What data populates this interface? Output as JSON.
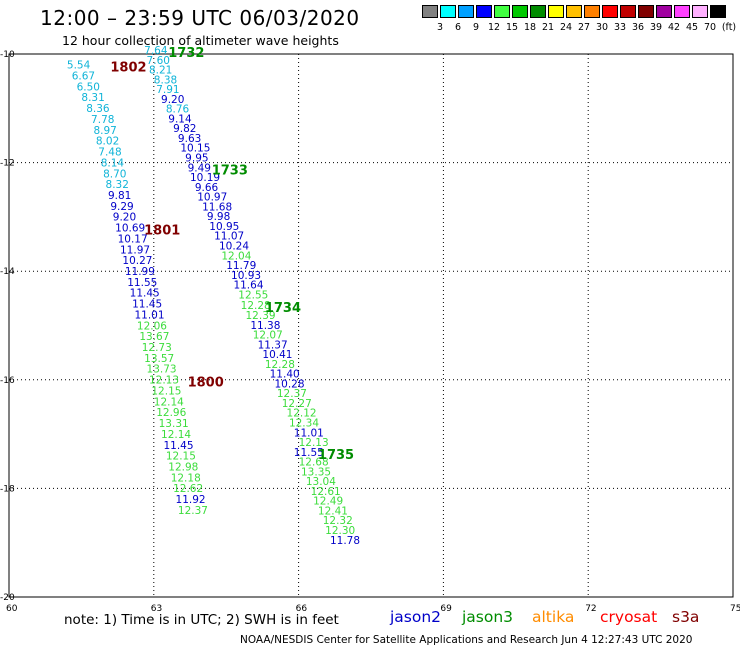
{
  "title": "12:00 – 23:59 UTC 06/03/2020",
  "subtitle": "12 hour collection of altimeter wave heights",
  "legend": {
    "unit": "(ft)",
    "bins": [
      {
        "label": "3",
        "color": "#808080"
      },
      {
        "label": "6",
        "color": "#00ffff"
      },
      {
        "label": "9",
        "color": "#00a0ff"
      },
      {
        "label": "12",
        "color": "#0000ff"
      },
      {
        "label": "15",
        "color": "#40ff40"
      },
      {
        "label": "18",
        "color": "#00c800"
      },
      {
        "label": "21",
        "color": "#008c00"
      },
      {
        "label": "24",
        "color": "#ffff00"
      },
      {
        "label": "27",
        "color": "#ffc000"
      },
      {
        "label": "30",
        "color": "#ff8000"
      },
      {
        "label": "33",
        "color": "#ff0000"
      },
      {
        "label": "36",
        "color": "#c00000"
      },
      {
        "label": "39",
        "color": "#800000"
      },
      {
        "label": "42",
        "color": "#a000a0"
      },
      {
        "label": "45",
        "color": "#ff40ff"
      },
      {
        "label": "70",
        "color": "#ffb0ff"
      },
      {
        "label": "",
        "color": "#000000"
      }
    ]
  },
  "colors": {
    "jason2": "#0000c8",
    "jason3": "#008c00",
    "altika": "#ff8c00",
    "cryosat": "#ff0000",
    "s3a": "#800000",
    "grid": "#000000",
    "light_green": "#3cdc3c",
    "cyan": "#10b4d8"
  },
  "map_data": {
    "lon_range": [
      60,
      75
    ],
    "lat_range": [
      -20,
      -10
    ],
    "lon_ticks": [
      "60",
      "63",
      "66",
      "69",
      "72",
      "75"
    ],
    "lat_ticks": [
      "-10",
      "-12",
      "-14",
      "-16",
      "-18",
      "-20"
    ],
    "tracks": [
      {
        "time": "1802",
        "sat": "s3a",
        "label_lon": 62.1,
        "label_lat": -10.27,
        "obs": [
          {
            "v": "5.54",
            "lon": 61.2,
            "lat": -10.27,
            "c": "cyan"
          },
          {
            "v": "6.67",
            "lon": 61.3,
            "lat": -10.47,
            "c": "cyan"
          },
          {
            "v": "6.50",
            "lon": 61.4,
            "lat": -10.67,
            "c": "cyan"
          },
          {
            "v": "8.31",
            "lon": 61.5,
            "lat": -10.87,
            "c": "cyan"
          },
          {
            "v": "8.36",
            "lon": 61.6,
            "lat": -11.07,
            "c": "cyan"
          },
          {
            "v": "7.78",
            "lon": 61.7,
            "lat": -11.27,
            "c": "cyan"
          },
          {
            "v": "8.97",
            "lon": 61.75,
            "lat": -11.47,
            "c": "cyan"
          },
          {
            "v": "8.02",
            "lon": 61.8,
            "lat": -11.67,
            "c": "cyan"
          },
          {
            "v": "7.48",
            "lon": 61.85,
            "lat": -11.87,
            "c": "cyan"
          },
          {
            "v": "8.14",
            "lon": 61.9,
            "lat": -12.07,
            "c": "cyan"
          },
          {
            "v": "8.70",
            "lon": 61.95,
            "lat": -12.27,
            "c": "cyan"
          },
          {
            "v": "8.32",
            "lon": 62.0,
            "lat": -12.47,
            "c": "cyan"
          },
          {
            "v": "9.81",
            "lon": 62.05,
            "lat": -12.67,
            "c": "jason2"
          },
          {
            "v": "9.29",
            "lon": 62.1,
            "lat": -12.87,
            "c": "jason2"
          },
          {
            "v": "9.20",
            "lon": 62.15,
            "lat": -13.07,
            "c": "jason2"
          }
        ]
      },
      {
        "time": "1801",
        "sat": "s3a",
        "label_lon": 62.8,
        "label_lat": -13.27,
        "obs": [
          {
            "v": "10.69",
            "lon": 62.2,
            "lat": -13.27,
            "c": "jason2"
          },
          {
            "v": "10.17",
            "lon": 62.25,
            "lat": -13.47,
            "c": "jason2"
          },
          {
            "v": "11.97",
            "lon": 62.3,
            "lat": -13.67,
            "c": "jason2"
          },
          {
            "v": "10.27",
            "lon": 62.35,
            "lat": -13.87,
            "c": "jason2"
          },
          {
            "v": "11.99",
            "lon": 62.4,
            "lat": -14.07,
            "c": "jason2"
          },
          {
            "v": "11.55",
            "lon": 62.45,
            "lat": -14.27,
            "c": "jason2"
          },
          {
            "v": "11.45",
            "lon": 62.5,
            "lat": -14.47,
            "c": "jason2"
          },
          {
            "v": "11.45",
            "lon": 62.55,
            "lat": -14.67,
            "c": "jason2"
          },
          {
            "v": "11.01",
            "lon": 62.6,
            "lat": -14.87,
            "c": "jason2"
          },
          {
            "v": "12.06",
            "lon": 62.65,
            "lat": -15.07,
            "c": "light_green"
          },
          {
            "v": "13.67",
            "lon": 62.7,
            "lat": -15.27,
            "c": "light_green"
          },
          {
            "v": "12.73",
            "lon": 62.75,
            "lat": -15.47,
            "c": "light_green"
          },
          {
            "v": "13.57",
            "lon": 62.8,
            "lat": -15.67,
            "c": "light_green"
          },
          {
            "v": "13.73",
            "lon": 62.85,
            "lat": -15.87,
            "c": "light_green"
          }
        ]
      },
      {
        "time": "1800",
        "sat": "s3a",
        "label_lon": 63.7,
        "label_lat": -16.07,
        "obs": [
          {
            "v": "12.13",
            "lon": 62.9,
            "lat": -16.07,
            "c": "light_green"
          },
          {
            "v": "12.15",
            "lon": 62.95,
            "lat": -16.27,
            "c": "light_green"
          },
          {
            "v": "12.14",
            "lon": 63.0,
            "lat": -16.47,
            "c": "light_green"
          },
          {
            "v": "12.96",
            "lon": 63.05,
            "lat": -16.67,
            "c": "light_green"
          },
          {
            "v": "13.31",
            "lon": 63.1,
            "lat": -16.87,
            "c": "light_green"
          },
          {
            "v": "12.14",
            "lon": 63.15,
            "lat": -17.07,
            "c": "light_green"
          },
          {
            "v": "11.45",
            "lon": 63.2,
            "lat": -17.27,
            "c": "jason2"
          },
          {
            "v": "12.15",
            "lon": 63.25,
            "lat": -17.47,
            "c": "light_green"
          },
          {
            "v": "12.98",
            "lon": 63.3,
            "lat": -17.67,
            "c": "light_green"
          },
          {
            "v": "12.18",
            "lon": 63.35,
            "lat": -17.87,
            "c": "light_green"
          },
          {
            "v": "12.62",
            "lon": 63.4,
            "lat": -18.07,
            "c": "light_green"
          },
          {
            "v": "11.92",
            "lon": 63.45,
            "lat": -18.27,
            "c": "jason2"
          },
          {
            "v": "12.37",
            "lon": 63.5,
            "lat": -18.47,
            "c": "light_green"
          }
        ]
      },
      {
        "time": "1732",
        "sat": "jason3",
        "label_lon": 63.3,
        "label_lat": -10.0,
        "obs": [
          {
            "v": "7.64",
            "lon": 62.8,
            "lat": -10.0,
            "c": "cyan"
          },
          {
            "v": "7.60",
            "lon": 62.85,
            "lat": -10.18,
            "c": "cyan"
          },
          {
            "v": "8.21",
            "lon": 62.9,
            "lat": -10.36,
            "c": "cyan"
          },
          {
            "v": "8.38",
            "lon": 63.0,
            "lat": -10.54,
            "c": "cyan"
          },
          {
            "v": "7.91",
            "lon": 63.05,
            "lat": -10.72,
            "c": "cyan"
          },
          {
            "v": "9.20",
            "lon": 63.15,
            "lat": -10.9,
            "c": "jason2"
          },
          {
            "v": "8.76",
            "lon": 63.25,
            "lat": -11.08,
            "c": "cyan"
          },
          {
            "v": "9.14",
            "lon": 63.3,
            "lat": -11.26,
            "c": "jason2"
          },
          {
            "v": "9.82",
            "lon": 63.4,
            "lat": -11.44,
            "c": "jason2"
          },
          {
            "v": "9.63",
            "lon": 63.5,
            "lat": -11.62,
            "c": "jason2"
          },
          {
            "v": "10.15",
            "lon": 63.55,
            "lat": -11.8,
            "c": "jason2"
          },
          {
            "v": "9.95",
            "lon": 63.65,
            "lat": -11.98,
            "c": "jason2"
          }
        ]
      },
      {
        "time": "1733",
        "sat": "jason3",
        "label_lon": 64.2,
        "label_lat": -12.16,
        "obs": [
          {
            "v": "9.49",
            "lon": 63.7,
            "lat": -12.16,
            "c": "jason2"
          },
          {
            "v": "10.19",
            "lon": 63.75,
            "lat": -12.34,
            "c": "jason2"
          },
          {
            "v": "9.66",
            "lon": 63.85,
            "lat": -12.52,
            "c": "jason2"
          },
          {
            "v": "10.97",
            "lon": 63.9,
            "lat": -12.7,
            "c": "jason2"
          },
          {
            "v": "11.68",
            "lon": 64.0,
            "lat": -12.88,
            "c": "jason2"
          },
          {
            "v": "9.98",
            "lon": 64.1,
            "lat": -13.06,
            "c": "jason2"
          },
          {
            "v": "10.95",
            "lon": 64.15,
            "lat": -13.24,
            "c": "jason2"
          },
          {
            "v": "11.07",
            "lon": 64.25,
            "lat": -13.42,
            "c": "jason2"
          },
          {
            "v": "10.24",
            "lon": 64.35,
            "lat": -13.6,
            "c": "jason2"
          },
          {
            "v": "12.04",
            "lon": 64.4,
            "lat": -13.78,
            "c": "light_green"
          },
          {
            "v": "11.79",
            "lon": 64.5,
            "lat": -13.96,
            "c": "jason2"
          },
          {
            "v": "10.93",
            "lon": 64.6,
            "lat": -14.14,
            "c": "jason2"
          },
          {
            "v": "11.64",
            "lon": 64.65,
            "lat": -14.32,
            "c": "jason2"
          },
          {
            "v": "12.55",
            "lon": 64.75,
            "lat": -14.5,
            "c": "light_green"
          }
        ]
      },
      {
        "time": "1734",
        "sat": "jason3",
        "label_lon": 65.3,
        "label_lat": -14.7,
        "obs": [
          {
            "v": "12.28",
            "lon": 64.8,
            "lat": -14.7,
            "c": "light_green"
          },
          {
            "v": "12.39",
            "lon": 64.9,
            "lat": -14.88,
            "c": "light_green"
          },
          {
            "v": "11.38",
            "lon": 65.0,
            "lat": -15.06,
            "c": "jason2"
          },
          {
            "v": "12.07",
            "lon": 65.05,
            "lat": -15.24,
            "c": "light_green"
          },
          {
            "v": "11.37",
            "lon": 65.15,
            "lat": -15.42,
            "c": "jason2"
          },
          {
            "v": "10.41",
            "lon": 65.25,
            "lat": -15.6,
            "c": "jason2"
          },
          {
            "v": "12.28",
            "lon": 65.3,
            "lat": -15.78,
            "c": "light_green"
          },
          {
            "v": "11.40",
            "lon": 65.4,
            "lat": -15.96,
            "c": "jason2"
          },
          {
            "v": "10.28",
            "lon": 65.5,
            "lat": -16.14,
            "c": "jason2"
          },
          {
            "v": "12.37",
            "lon": 65.55,
            "lat": -16.32,
            "c": "light_green"
          },
          {
            "v": "12.27",
            "lon": 65.65,
            "lat": -16.5,
            "c": "light_green"
          },
          {
            "v": "12.12",
            "lon": 65.75,
            "lat": -16.68,
            "c": "light_green"
          },
          {
            "v": "12.34",
            "lon": 65.8,
            "lat": -16.86,
            "c": "light_green"
          },
          {
            "v": "11.01",
            "lon": 65.9,
            "lat": -17.04,
            "c": "jason2"
          },
          {
            "v": "12.13",
            "lon": 66.0,
            "lat": -17.22,
            "c": "light_green"
          }
        ]
      },
      {
        "time": "1735",
        "sat": "jason3",
        "label_lon": 66.4,
        "label_lat": -17.4,
        "obs": [
          {
            "v": "11.55",
            "lon": 65.9,
            "lat": -17.4,
            "c": "jason2"
          },
          {
            "v": "12.68",
            "lon": 66.0,
            "lat": -17.58,
            "c": "light_green"
          },
          {
            "v": "13.35",
            "lon": 66.05,
            "lat": -17.76,
            "c": "light_green"
          },
          {
            "v": "13.04",
            "lon": 66.15,
            "lat": -17.94,
            "c": "light_green"
          },
          {
            "v": "12.61",
            "lon": 66.25,
            "lat": -18.12,
            "c": "light_green"
          },
          {
            "v": "12.49",
            "lon": 66.3,
            "lat": -18.3,
            "c": "light_green"
          },
          {
            "v": "12.41",
            "lon": 66.4,
            "lat": -18.48,
            "c": "light_green"
          },
          {
            "v": "12.32",
            "lon": 66.5,
            "lat": -18.66,
            "c": "light_green"
          },
          {
            "v": "12.30",
            "lon": 66.55,
            "lat": -18.84,
            "c": "light_green"
          },
          {
            "v": "11.78",
            "lon": 66.65,
            "lat": -19.02,
            "c": "jason2"
          }
        ]
      }
    ]
  },
  "note": "note:  1) Time is in UTC;  2) SWH is in feet",
  "satellites": [
    {
      "name": "jason2",
      "color": "#0000c8"
    },
    {
      "name": "jason3",
      "color": "#008c00"
    },
    {
      "name": "altika",
      "color": "#ff8c00"
    },
    {
      "name": "cryosat",
      "color": "#ff0000"
    },
    {
      "name": "s3a",
      "color": "#800000"
    }
  ],
  "footer": "NOAA/NESDIS Center for Satellite Applications and Research    Jun  4 12:27:43 UTC 2020"
}
